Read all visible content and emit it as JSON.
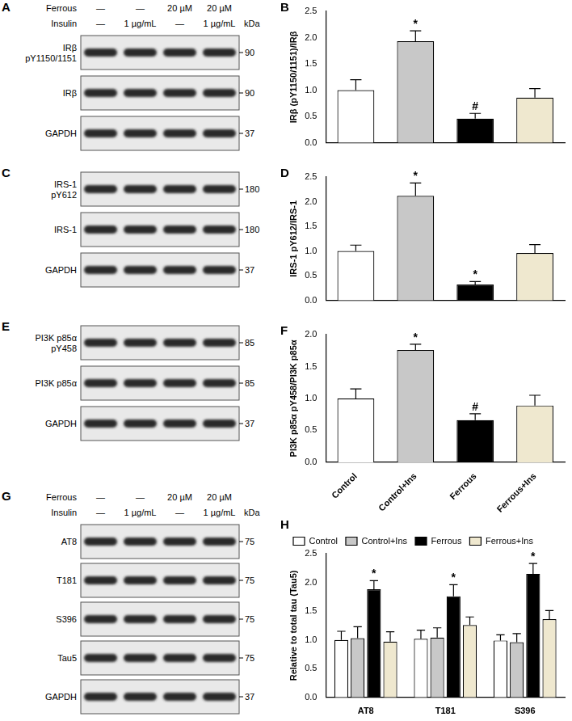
{
  "blots": [
    {
      "panel": "A",
      "header": {
        "rows": [
          {
            "label": "Ferrous",
            "cells": [
              "—",
              "—",
              "20 µM",
              "20 µM"
            ]
          },
          {
            "label": "Insulin",
            "cells": [
              "—",
              "1 µg/mL",
              "—",
              "1 µg/mL"
            ]
          }
        ],
        "unit": "kDa"
      },
      "rows": [
        {
          "label": [
            "IRβ",
            "pY1150/1151"
          ],
          "kda": 90
        },
        {
          "label": [
            "IRβ"
          ],
          "kda": 90
        },
        {
          "label": [
            "GAPDH"
          ],
          "kda": 37
        }
      ]
    },
    {
      "panel": "C",
      "rows": [
        {
          "label": [
            "IRS-1",
            "pY612"
          ],
          "kda": 180
        },
        {
          "label": [
            "IRS-1"
          ],
          "kda": 180
        },
        {
          "label": [
            "GAPDH"
          ],
          "kda": 37
        }
      ]
    },
    {
      "panel": "E",
      "rows": [
        {
          "label": [
            "PI3K p85α",
            "pY458"
          ],
          "kda": 85
        },
        {
          "label": [
            "PI3K p85α"
          ],
          "kda": 85
        },
        {
          "label": [
            "GAPDH"
          ],
          "kda": 37
        }
      ]
    },
    {
      "panel": "G",
      "header": {
        "rows": [
          {
            "label": "Ferrous",
            "cells": [
              "—",
              "—",
              "20 µM",
              "20 µM"
            ]
          },
          {
            "label": "Insulin",
            "cells": [
              "—",
              "1 µg/mL",
              "—",
              "1 µg/mL"
            ]
          }
        ],
        "unit": "kDa"
      },
      "rows": [
        {
          "label": [
            "AT8"
          ],
          "kda": 75
        },
        {
          "label": [
            "T181"
          ],
          "kda": 75
        },
        {
          "label": [
            "S396"
          ],
          "kda": 75
        },
        {
          "label": [
            "Tau5"
          ],
          "kda": 75
        },
        {
          "label": [
            "GAPDH"
          ],
          "kda": 37
        }
      ]
    }
  ],
  "chart_data": [
    {
      "type": "bar",
      "panel": "B",
      "y_label": "IRβ (pY1150/1151)/IRβ",
      "categories": [
        null,
        null,
        null,
        null
      ],
      "values": [
        1.0,
        1.93,
        0.46,
        0.86
      ],
      "errors": [
        0.2,
        0.2,
        0.1,
        0.17
      ],
      "significance": [
        null,
        "*",
        "#",
        null
      ],
      "colors": [
        "#ffffff",
        "#c8c8c8",
        "#000000",
        "#efe8cf"
      ],
      "ylim": [
        0,
        2.5
      ],
      "yticks": [
        {
          "value": 0,
          "label": "0.0"
        },
        {
          "value": 0.5,
          "label": "0.5"
        },
        {
          "value": 1,
          "label": "1.0"
        },
        {
          "value": 1.5,
          "label": "1.5"
        },
        {
          "value": 2,
          "label": "2.0"
        },
        {
          "value": 2.5,
          "label": "2.5"
        }
      ],
      "grid": false
    },
    {
      "type": "bar",
      "panel": "D",
      "y_label": "IRS-1 pY612/IRS-1",
      "categories": [
        null,
        null,
        null,
        null
      ],
      "values": [
        1.0,
        2.12,
        0.32,
        0.96
      ],
      "errors": [
        0.12,
        0.26,
        0.06,
        0.17
      ],
      "significance": [
        null,
        "*",
        "*",
        null
      ],
      "colors": [
        "#ffffff",
        "#c8c8c8",
        "#000000",
        "#efe8cf"
      ],
      "ylim": [
        0,
        2.5
      ],
      "yticks": [
        {
          "value": 0,
          "label": "0.0"
        },
        {
          "value": 0.5,
          "label": "0.5"
        },
        {
          "value": 1,
          "label": "1.0"
        },
        {
          "value": 1.5,
          "label": "1.5"
        },
        {
          "value": 2,
          "label": "2.0"
        },
        {
          "value": 2.5,
          "label": "2.5"
        }
      ],
      "grid": false
    },
    {
      "type": "bar",
      "panel": "F",
      "y_label": "PI3K p85α pY458/PI3K p85α",
      "categories": [
        "Control",
        "Control+Ins",
        "Ferrous",
        "Ferrous+Ins"
      ],
      "values": [
        1.0,
        1.76,
        0.66,
        0.89
      ],
      "errors": [
        0.15,
        0.09,
        0.1,
        0.16
      ],
      "significance": [
        null,
        "*",
        "#",
        null
      ],
      "colors": [
        "#ffffff",
        "#c8c8c8",
        "#000000",
        "#efe8cf"
      ],
      "ylim": [
        0,
        2.0
      ],
      "yticks": [
        {
          "value": 0,
          "label": "0.0"
        },
        {
          "value": 0.5,
          "label": "0.5"
        },
        {
          "value": 1,
          "label": "1.0"
        },
        {
          "value": 1.5,
          "label": "1.5"
        },
        {
          "value": 2,
          "label": "2.0"
        }
      ],
      "grid": false
    },
    {
      "type": "bar",
      "panel": "H",
      "y_label": "Relative to total tau (Tau5)",
      "categories": [
        "AT8",
        "T181",
        "S396"
      ],
      "series": [
        {
          "name": "Control",
          "color": "#ffffff",
          "values": [
            1.0,
            1.02,
            0.99
          ],
          "errors": [
            0.15,
            0.15,
            0.1
          ],
          "significance": [
            null,
            null,
            null
          ]
        },
        {
          "name": "Control+Ins",
          "color": "#c8c8c8",
          "values": [
            1.03,
            1.04,
            0.96
          ],
          "errors": [
            0.2,
            0.17,
            0.15
          ],
          "significance": [
            null,
            null,
            null
          ]
        },
        {
          "name": "Ferrous",
          "color": "#000000",
          "values": [
            1.88,
            1.76,
            2.15
          ],
          "errors": [
            0.15,
            0.2,
            0.18
          ],
          "significance": [
            "*",
            "*",
            "*"
          ]
        },
        {
          "name": "Ferrous+Ins",
          "color": "#efe8cf",
          "values": [
            0.97,
            1.26,
            1.36
          ],
          "errors": [
            0.17,
            0.14,
            0.15
          ],
          "significance": [
            null,
            null,
            null
          ]
        }
      ],
      "ylim": [
        0,
        2.5
      ],
      "yticks": [
        {
          "value": 0,
          "label": "0.0"
        },
        {
          "value": 0.5,
          "label": "0.5"
        },
        {
          "value": 1,
          "label": "1.0"
        },
        {
          "value": 1.5,
          "label": "1.5"
        },
        {
          "value": 2,
          "label": "2.0"
        },
        {
          "value": 2.5,
          "label": "2.5"
        }
      ],
      "legend": "top-left",
      "grid": false
    }
  ]
}
